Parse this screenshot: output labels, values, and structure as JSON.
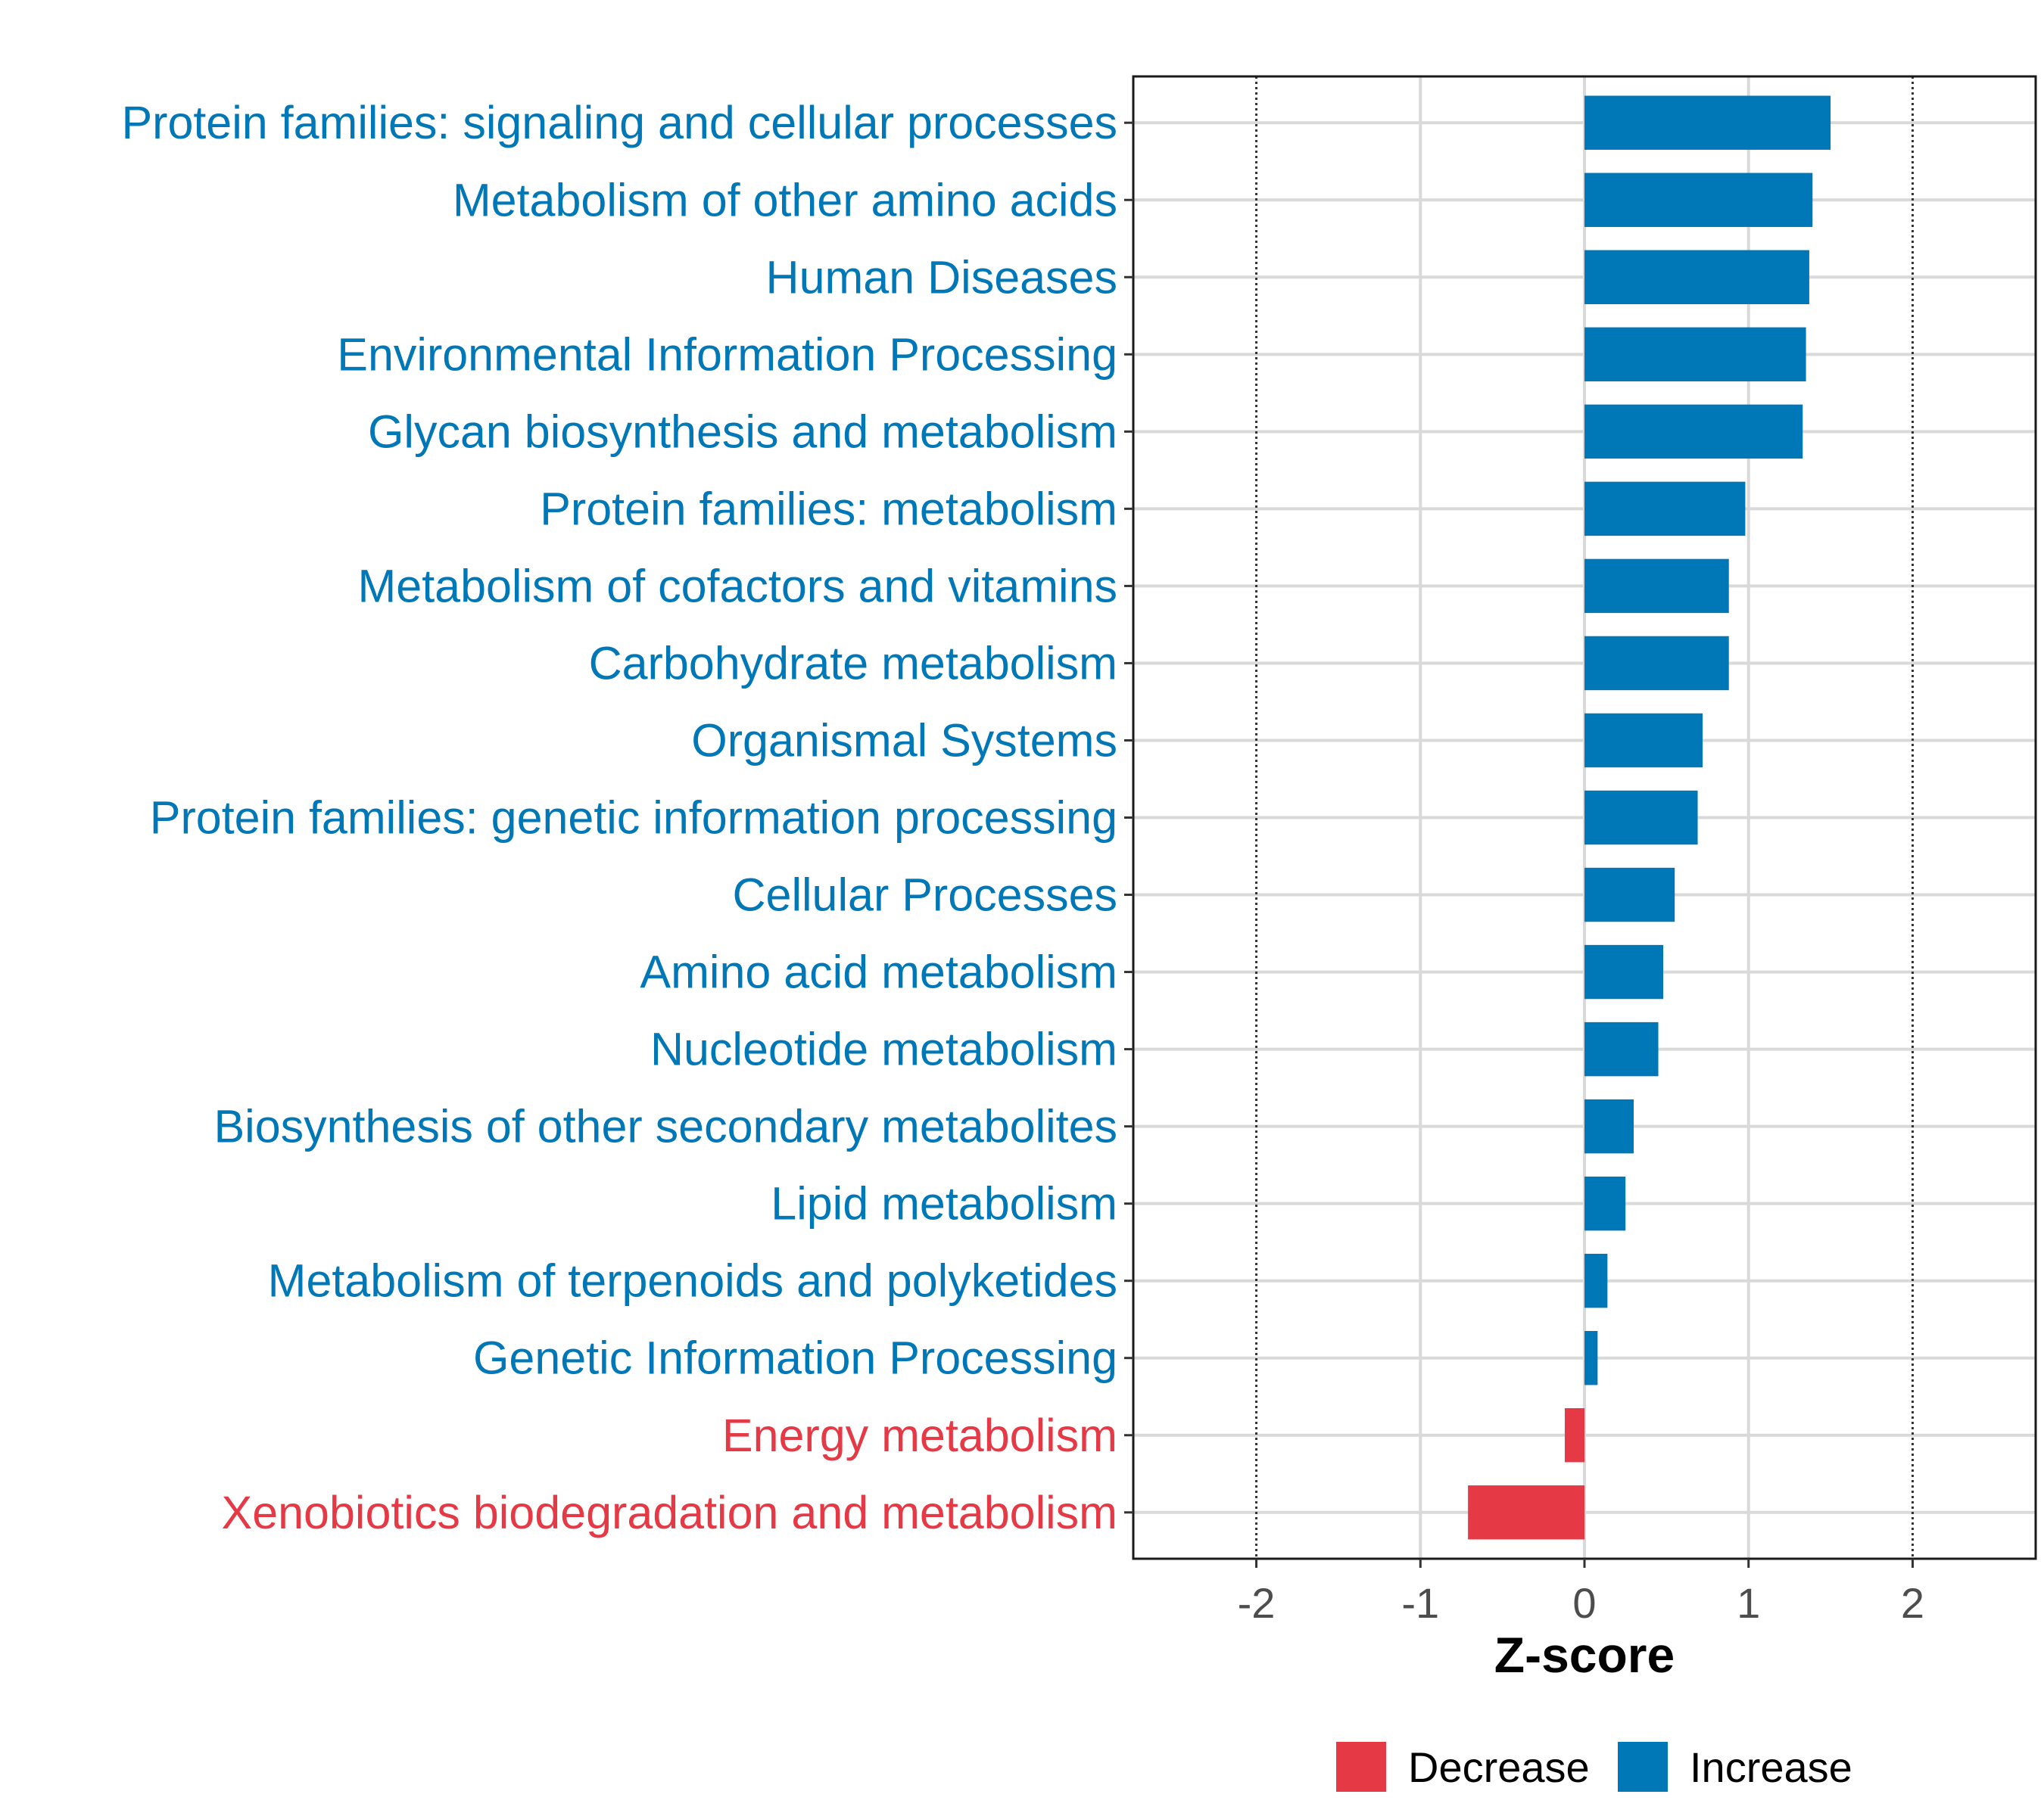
{
  "chart_data": {
    "type": "bar",
    "orientation": "horizontal",
    "xlabel": "Z-score",
    "xlim": [
      -2.75,
      2.75
    ],
    "xticks": [
      -2,
      -1,
      0,
      1,
      2
    ],
    "xtick_labels": [
      "-2",
      "-1",
      "0",
      "1",
      "2"
    ],
    "reference_lines": [
      -2,
      2
    ],
    "grid": true,
    "legend_placement": "bottom",
    "colors": {
      "Decrease": "#E63946",
      "Increase": "#0077B6"
    },
    "legend": [
      {
        "label": "Decrease",
        "color": "#E63946"
      },
      {
        "label": "Increase",
        "color": "#0077B6"
      }
    ],
    "categories": [
      "Protein families: signaling and cellular processes",
      "Metabolism of other amino acids",
      "Human Diseases",
      "Environmental Information Processing",
      "Glycan biosynthesis and metabolism",
      "Protein families: metabolism",
      "Metabolism of cofactors and vitamins",
      "Carbohydrate metabolism",
      "Organismal Systems",
      "Protein families: genetic information processing",
      "Cellular Processes",
      "Amino acid metabolism",
      "Nucleotide metabolism",
      "Biosynthesis of other secondary metabolites",
      "Lipid metabolism",
      "Metabolism of terpenoids and polyketides",
      "Genetic Information Processing",
      "Energy metabolism",
      "Xenobiotics biodegradation and metabolism"
    ],
    "values": [
      1.5,
      1.39,
      1.37,
      1.35,
      1.33,
      0.98,
      0.88,
      0.88,
      0.72,
      0.69,
      0.55,
      0.48,
      0.45,
      0.3,
      0.25,
      0.14,
      0.08,
      -0.12,
      -0.71
    ],
    "groups": [
      "Increase",
      "Increase",
      "Increase",
      "Increase",
      "Increase",
      "Increase",
      "Increase",
      "Increase",
      "Increase",
      "Increase",
      "Increase",
      "Increase",
      "Increase",
      "Increase",
      "Increase",
      "Increase",
      "Increase",
      "Decrease",
      "Decrease"
    ]
  }
}
